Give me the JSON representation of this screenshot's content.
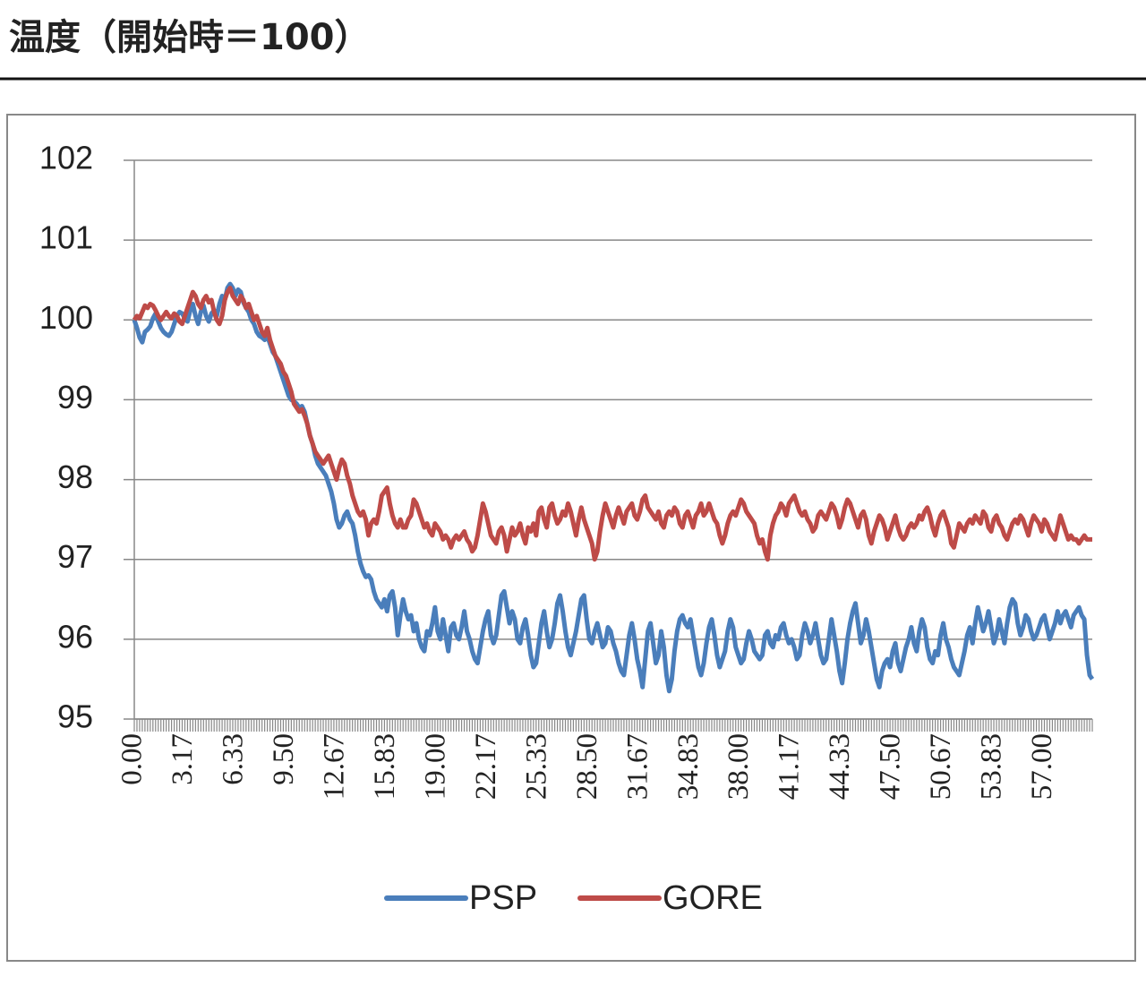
{
  "chart_data": {
    "type": "line",
    "title": "温度（開始時＝100）",
    "categories": [
      "0.00",
      null,
      null,
      null,
      null,
      null,
      null,
      null,
      null,
      null,
      null,
      null,
      null,
      null,
      null,
      null,
      null,
      null,
      null,
      "3.17",
      null,
      null,
      null,
      null,
      null,
      null,
      null,
      null,
      null,
      null,
      null,
      null,
      null,
      null,
      null,
      null,
      null,
      null,
      "6.33",
      null,
      null,
      null,
      null,
      null,
      null,
      null,
      null,
      null,
      null,
      null,
      null,
      null,
      null,
      null,
      null,
      null,
      null,
      "9.50",
      null,
      null,
      null,
      null,
      null,
      null,
      null,
      null,
      null,
      null,
      null,
      null,
      null,
      null,
      null,
      null,
      null,
      null,
      "12.67",
      null,
      null,
      null,
      null,
      null,
      null,
      null,
      null,
      null,
      null,
      null,
      null,
      null,
      null,
      null,
      null,
      null,
      null,
      "15.83",
      null,
      null,
      null,
      null,
      null,
      null,
      null,
      null,
      null,
      null,
      null,
      null,
      null,
      null,
      null,
      null,
      null,
      null,
      "19.00",
      null,
      null,
      null,
      null,
      null,
      null,
      null,
      null,
      null,
      null,
      null,
      null,
      null,
      null,
      null,
      null,
      null,
      null,
      "22.17",
      null,
      null,
      null,
      null,
      null,
      null,
      null,
      null,
      null,
      null,
      null,
      null,
      null,
      null,
      null,
      null,
      null,
      null,
      "25.33",
      null,
      null,
      null,
      null,
      null,
      null,
      null,
      null,
      null,
      null,
      null,
      null,
      null,
      null,
      null,
      null,
      null,
      null,
      "28.50",
      null,
      null,
      null,
      null,
      null,
      null,
      null,
      null,
      null,
      null,
      null,
      null,
      null,
      null,
      null,
      null,
      null,
      null,
      "31.67",
      null,
      null,
      null,
      null,
      null,
      null,
      null,
      null,
      null,
      null,
      null,
      null,
      null,
      null,
      null,
      null,
      null,
      null,
      "34.83",
      null,
      null,
      null,
      null,
      null,
      null,
      null,
      null,
      null,
      null,
      null,
      null,
      null,
      null,
      null,
      null,
      null,
      null,
      "38.00",
      null,
      null,
      null,
      null,
      null,
      null,
      null,
      null,
      null,
      null,
      null,
      null,
      null,
      null,
      null,
      null,
      null,
      null,
      "41.17",
      null,
      null,
      null,
      null,
      null,
      null,
      null,
      null,
      null,
      null,
      null,
      null,
      null,
      null,
      null,
      null,
      null,
      null,
      "44.33",
      null,
      null,
      null,
      null,
      null,
      null,
      null,
      null,
      null,
      null,
      null,
      null,
      null,
      null,
      null,
      null,
      null,
      null,
      "47.50",
      null,
      null,
      null,
      null,
      null,
      null,
      null,
      null,
      null,
      null,
      null,
      null,
      null,
      null,
      null,
      null,
      null,
      null,
      "50.67",
      null,
      null,
      null,
      null,
      null,
      null,
      null,
      null,
      null,
      null,
      null,
      null,
      null,
      null,
      null,
      null,
      null,
      null,
      "53.83",
      null,
      null,
      null,
      null,
      null,
      null,
      null,
      null,
      null,
      null,
      null,
      null,
      null,
      null,
      null,
      null,
      null,
      null,
      "57.00",
      null,
      null,
      null,
      null,
      null,
      null,
      null,
      null,
      null,
      null,
      null,
      null,
      null,
      null,
      null,
      null,
      null,
      null
    ],
    "series": [
      {
        "name": "PSP",
        "color": "#4a7ebb",
        "values": [
          100.0,
          99.9,
          99.78,
          99.72,
          99.85,
          99.88,
          99.92,
          100.02,
          100.08,
          99.98,
          99.9,
          99.85,
          99.82,
          99.8,
          99.85,
          99.95,
          100.05,
          100.1,
          100.08,
          100.02,
          99.98,
          100.12,
          100.2,
          100.05,
          99.95,
          100.1,
          100.18,
          100.05,
          99.98,
          100.08,
          100.12,
          100.05,
          100.2,
          100.3,
          100.25,
          100.4,
          100.45,
          100.4,
          100.3,
          100.38,
          100.35,
          100.22,
          100.15,
          100.1,
          100.0,
          99.95,
          99.85,
          99.8,
          99.78,
          99.75,
          99.8,
          99.7,
          99.6,
          99.55,
          99.45,
          99.35,
          99.25,
          99.15,
          99.05,
          99.0,
          98.98,
          98.95,
          98.9,
          98.92,
          98.85,
          98.7,
          98.55,
          98.45,
          98.3,
          98.2,
          98.15,
          98.1,
          98.05,
          97.95,
          97.85,
          97.7,
          97.5,
          97.4,
          97.45,
          97.55,
          97.6,
          97.5,
          97.45,
          97.3,
          97.1,
          96.95,
          96.85,
          96.78,
          96.8,
          96.75,
          96.6,
          96.5,
          96.45,
          96.4,
          96.5,
          96.35,
          96.55,
          96.6,
          96.4,
          96.05,
          96.3,
          96.5,
          96.35,
          96.25,
          96.3,
          96.1,
          96.2,
          96.0,
          95.9,
          95.85,
          96.1,
          96.05,
          96.2,
          96.4,
          96.1,
          96.0,
          96.25,
          96.05,
          95.85,
          96.15,
          96.2,
          96.05,
          96.0,
          96.15,
          96.35,
          96.1,
          96.0,
          95.85,
          95.75,
          95.7,
          95.9,
          96.1,
          96.25,
          96.35,
          96.05,
          95.95,
          96.05,
          96.3,
          96.55,
          96.6,
          96.4,
          96.2,
          96.35,
          96.25,
          96.0,
          95.95,
          96.15,
          96.25,
          96.05,
          95.8,
          95.65,
          95.7,
          95.95,
          96.2,
          96.35,
          96.1,
          95.9,
          96.0,
          96.2,
          96.45,
          96.55,
          96.35,
          96.1,
          95.9,
          95.8,
          95.95,
          96.1,
          96.3,
          96.5,
          96.55,
          96.25,
          96.0,
          95.95,
          96.1,
          96.2,
          96.05,
          95.9,
          95.95,
          96.15,
          96.1,
          95.95,
          95.85,
          95.7,
          95.6,
          95.55,
          95.8,
          96.05,
          96.2,
          96.0,
          95.75,
          95.6,
          95.4,
          95.75,
          96.1,
          96.2,
          95.95,
          95.7,
          95.8,
          96.1,
          95.9,
          95.55,
          95.35,
          95.5,
          95.85,
          96.1,
          96.25,
          96.3,
          96.2,
          96.15,
          96.25,
          96.05,
          95.85,
          95.65,
          95.55,
          95.7,
          95.95,
          96.15,
          96.25,
          96.05,
          95.8,
          95.65,
          95.75,
          95.85,
          96.1,
          96.25,
          96.15,
          95.9,
          95.8,
          95.7,
          95.75,
          95.95,
          96.1,
          96.0,
          95.85,
          95.8,
          95.75,
          95.8,
          96.05,
          96.1,
          95.95,
          95.9,
          96.05,
          96.0,
          96.15,
          96.2,
          96.05,
          95.95,
          96.0,
          95.9,
          95.75,
          95.8,
          96.05,
          96.2,
          96.1,
          95.95,
          96.05,
          96.2,
          96.0,
          95.8,
          95.7,
          95.75,
          96.0,
          96.25,
          96.05,
          95.85,
          95.6,
          95.45,
          95.7,
          96.0,
          96.2,
          96.35,
          96.45,
          96.2,
          95.95,
          96.05,
          96.25,
          96.1,
          95.9,
          95.7,
          95.5,
          95.4,
          95.6,
          95.7,
          95.75,
          95.65,
          95.85,
          95.95,
          95.7,
          95.6,
          95.75,
          95.9,
          96.0,
          96.15,
          95.95,
          95.85,
          96.1,
          96.25,
          96.15,
          95.9,
          95.75,
          95.7,
          95.85,
          95.8,
          96.05,
          96.2,
          96.0,
          95.9,
          95.75,
          95.65,
          95.6,
          95.55,
          95.7,
          95.85,
          96.05,
          96.15,
          95.95,
          96.2,
          96.4,
          96.25,
          96.1,
          96.2,
          96.35,
          96.15,
          95.95,
          96.05,
          96.25,
          96.1,
          95.95,
          96.2,
          96.4,
          96.5,
          96.45,
          96.2,
          96.05,
          96.15,
          96.3,
          96.25,
          96.1,
          96.0,
          96.05,
          96.15,
          96.25,
          96.3,
          96.15,
          96.0,
          96.1,
          96.2,
          96.35,
          96.2,
          96.3,
          96.35,
          96.25,
          96.15,
          96.3,
          96.35,
          96.4,
          96.3,
          96.25,
          95.8,
          95.55,
          95.5
        ]
      },
      {
        "name": "GORE",
        "color": "#be4b48",
        "values": [
          100.0,
          100.05,
          100.02,
          100.1,
          100.18,
          100.15,
          100.2,
          100.18,
          100.12,
          100.05,
          100.0,
          100.05,
          100.1,
          100.05,
          100.02,
          100.08,
          100.05,
          99.98,
          99.95,
          100.05,
          100.15,
          100.25,
          100.35,
          100.3,
          100.2,
          100.15,
          100.25,
          100.3,
          100.22,
          100.25,
          100.1,
          100.0,
          99.95,
          100.05,
          100.25,
          100.35,
          100.4,
          100.3,
          100.25,
          100.2,
          100.3,
          100.25,
          100.15,
          100.2,
          100.1,
          100.0,
          100.05,
          99.95,
          99.85,
          99.8,
          99.9,
          99.75,
          99.65,
          99.55,
          99.5,
          99.45,
          99.35,
          99.3,
          99.2,
          99.1,
          98.95,
          98.9,
          98.85,
          98.88,
          98.8,
          98.7,
          98.55,
          98.45,
          98.35,
          98.3,
          98.25,
          98.2,
          98.25,
          98.3,
          98.2,
          98.1,
          98.0,
          98.15,
          98.25,
          98.2,
          98.05,
          97.95,
          97.8,
          97.7,
          97.6,
          97.55,
          97.6,
          97.5,
          97.3,
          97.45,
          97.5,
          97.45,
          97.6,
          97.8,
          97.85,
          97.9,
          97.7,
          97.55,
          97.45,
          97.4,
          97.5,
          97.4,
          97.4,
          97.5,
          97.55,
          97.75,
          97.7,
          97.6,
          97.5,
          97.4,
          97.45,
          97.35,
          97.3,
          97.45,
          97.4,
          97.35,
          97.25,
          97.3,
          97.25,
          97.15,
          97.25,
          97.3,
          97.25,
          97.3,
          97.35,
          97.25,
          97.2,
          97.1,
          97.15,
          97.3,
          97.5,
          97.7,
          97.6,
          97.45,
          97.3,
          97.25,
          97.2,
          97.35,
          97.4,
          97.3,
          97.1,
          97.25,
          97.4,
          97.3,
          97.35,
          97.45,
          97.3,
          97.2,
          97.4,
          97.35,
          97.45,
          97.3,
          97.6,
          97.65,
          97.5,
          97.4,
          97.65,
          97.7,
          97.55,
          97.45,
          97.5,
          97.6,
          97.55,
          97.7,
          97.6,
          97.45,
          97.3,
          97.5,
          97.65,
          97.5,
          97.4,
          97.3,
          97.2,
          97.0,
          97.1,
          97.35,
          97.55,
          97.7,
          97.6,
          97.5,
          97.4,
          97.55,
          97.65,
          97.55,
          97.45,
          97.6,
          97.65,
          97.7,
          97.55,
          97.5,
          97.6,
          97.75,
          97.8,
          97.65,
          97.6,
          97.55,
          97.5,
          97.6,
          97.45,
          97.4,
          97.55,
          97.6,
          97.55,
          97.65,
          97.6,
          97.45,
          97.4,
          97.55,
          97.6,
          97.5,
          97.4,
          97.55,
          97.6,
          97.7,
          97.55,
          97.6,
          97.7,
          97.6,
          97.5,
          97.45,
          97.3,
          97.2,
          97.3,
          97.45,
          97.55,
          97.6,
          97.55,
          97.65,
          97.75,
          97.7,
          97.6,
          97.55,
          97.5,
          97.45,
          97.3,
          97.2,
          97.25,
          97.1,
          97.0,
          97.3,
          97.45,
          97.55,
          97.6,
          97.7,
          97.65,
          97.55,
          97.7,
          97.75,
          97.8,
          97.7,
          97.6,
          97.55,
          97.6,
          97.5,
          97.45,
          97.35,
          97.4,
          97.55,
          97.6,
          97.55,
          97.5,
          97.6,
          97.7,
          97.65,
          97.55,
          97.4,
          97.5,
          97.65,
          97.75,
          97.7,
          97.6,
          97.5,
          97.4,
          97.55,
          97.6,
          97.5,
          97.3,
          97.2,
          97.35,
          97.45,
          97.55,
          97.5,
          97.4,
          97.25,
          97.35,
          97.45,
          97.55,
          97.4,
          97.3,
          97.25,
          97.3,
          97.4,
          97.45,
          97.4,
          97.45,
          97.55,
          97.5,
          97.6,
          97.65,
          97.55,
          97.4,
          97.3,
          97.45,
          97.55,
          97.6,
          97.5,
          97.4,
          97.2,
          97.15,
          97.3,
          97.45,
          97.4,
          97.35,
          97.45,
          97.5,
          97.45,
          97.55,
          97.5,
          97.45,
          97.6,
          97.55,
          97.4,
          97.35,
          97.5,
          97.55,
          97.45,
          97.4,
          97.3,
          97.25,
          97.35,
          97.45,
          97.5,
          97.45,
          97.55,
          97.5,
          97.4,
          97.3,
          97.45,
          97.55,
          97.5,
          97.45,
          97.35,
          97.5,
          97.45,
          97.35,
          97.3,
          97.25,
          97.4,
          97.55,
          97.45,
          97.35,
          97.25,
          97.3,
          97.25,
          97.25,
          97.2,
          97.25,
          97.3,
          97.25,
          97.25,
          97.25
        ]
      }
    ],
    "ylim": [
      95,
      102
    ],
    "yticks": [
      95,
      96,
      97,
      98,
      99,
      100,
      101,
      102
    ],
    "grid": true,
    "legend": "bottom"
  }
}
